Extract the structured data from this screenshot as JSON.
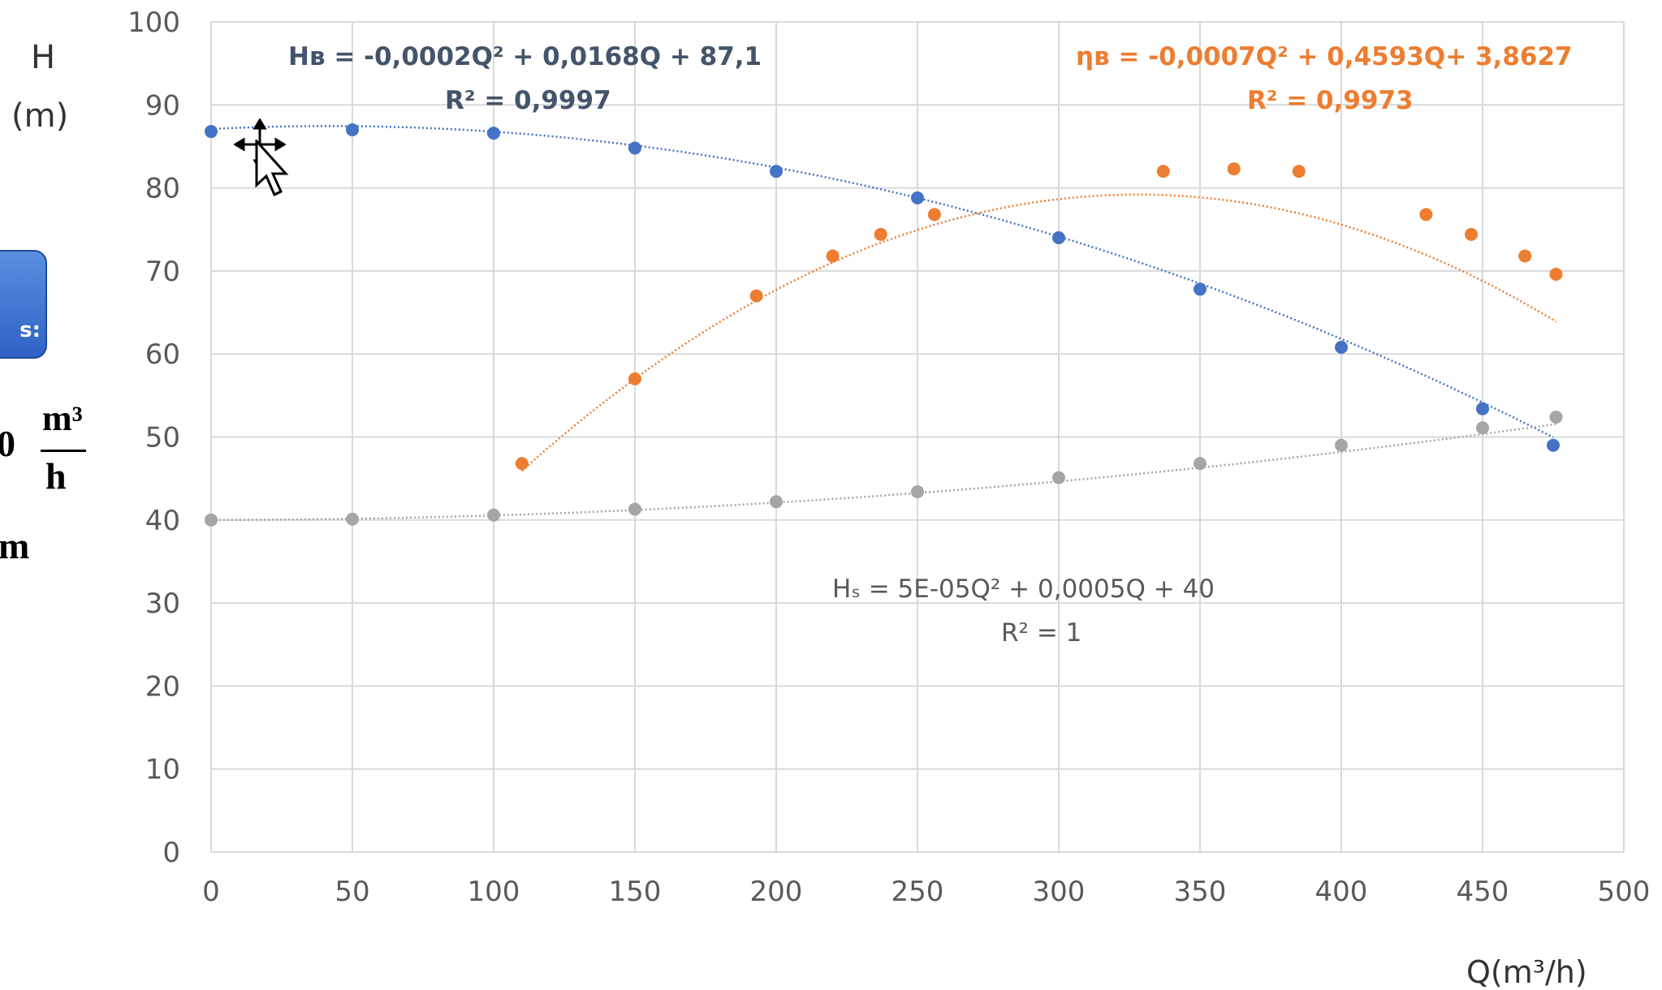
{
  "side_panel": {
    "button_fragment": "s:",
    "unit_numerator_prefix": "0",
    "unit_numerator": "m³",
    "unit_denominator": "h",
    "unit_m": "m"
  },
  "annotations": {
    "hb_equation": "Hʙ = -0,0002Q² + 0,0168Q + 87,1",
    "hb_r2": "R² = 0,9997",
    "eta_equation": "ηʙ = -0,0007Q² + 0,4593Q+ 3,8627",
    "eta_r2": "R² = 0,9973",
    "hs_equation": "Hₛ = 5E-05Q² + 0,0005Q + 40",
    "hs_r2": "R² = 1"
  },
  "chart_data": {
    "type": "scatter",
    "title": "",
    "ylabel_line1": "H",
    "ylabel_line2": "(m)",
    "xlabel": "Q(m³/h)",
    "xlim": [
      0,
      500
    ],
    "ylim": [
      0,
      100
    ],
    "x_ticks": [
      "0",
      "50",
      "100",
      "150",
      "200",
      "250",
      "300",
      "350",
      "400",
      "450",
      "500"
    ],
    "y_ticks": [
      "0",
      "10",
      "20",
      "30",
      "40",
      "50",
      "60",
      "70",
      "80",
      "90",
      "100"
    ],
    "grid": true,
    "trendlines": "polynomial order 2, dotted",
    "series": [
      {
        "color": "#4472c4",
        "points": [
          [
            0,
            86.8
          ],
          [
            50,
            87
          ],
          [
            100,
            86.6
          ],
          [
            150,
            84.8
          ],
          [
            200,
            82
          ],
          [
            250,
            78.8
          ],
          [
            300,
            74
          ],
          [
            350,
            67.8
          ],
          [
            400,
            60.8
          ],
          [
            450,
            53.4
          ],
          [
            475,
            49
          ]
        ],
        "fit": [
          -0.0002,
          0.0168,
          87.1
        ]
      },
      {
        "color": "#ed7d31",
        "points": [
          [
            110,
            46.8
          ],
          [
            150,
            57
          ],
          [
            193,
            67
          ],
          [
            220,
            71.8
          ],
          [
            237,
            74.4
          ],
          [
            256,
            76.8
          ],
          [
            337,
            82
          ],
          [
            362,
            82.3
          ],
          [
            385,
            82
          ],
          [
            430,
            76.8
          ],
          [
            446,
            74.4
          ],
          [
            465,
            71.8
          ],
          [
            476,
            69.6
          ]
        ],
        "fit": [
          -0.0007,
          0.4593,
          3.8627
        ]
      },
      {
        "color": "#a5a5a5",
        "points": [
          [
            0,
            40
          ],
          [
            50,
            40.1
          ],
          [
            100,
            40.6
          ],
          [
            150,
            41.3
          ],
          [
            200,
            42.2
          ],
          [
            250,
            43.4
          ],
          [
            300,
            45.1
          ],
          [
            350,
            46.8
          ],
          [
            400,
            49
          ],
          [
            450,
            51.1
          ],
          [
            476,
            52.4
          ]
        ],
        "fit": [
          5e-05,
          0.0005,
          40
        ]
      }
    ]
  },
  "colors": {
    "blue": "#4472c4",
    "orange": "#ed7d31",
    "gray": "#a5a5a5",
    "hb_text": "#44546a",
    "eta_text": "#ed7d31",
    "hs_text": "#595959"
  },
  "icons": [
    "move-cursor-icon",
    "arrow-pointer-icon"
  ]
}
